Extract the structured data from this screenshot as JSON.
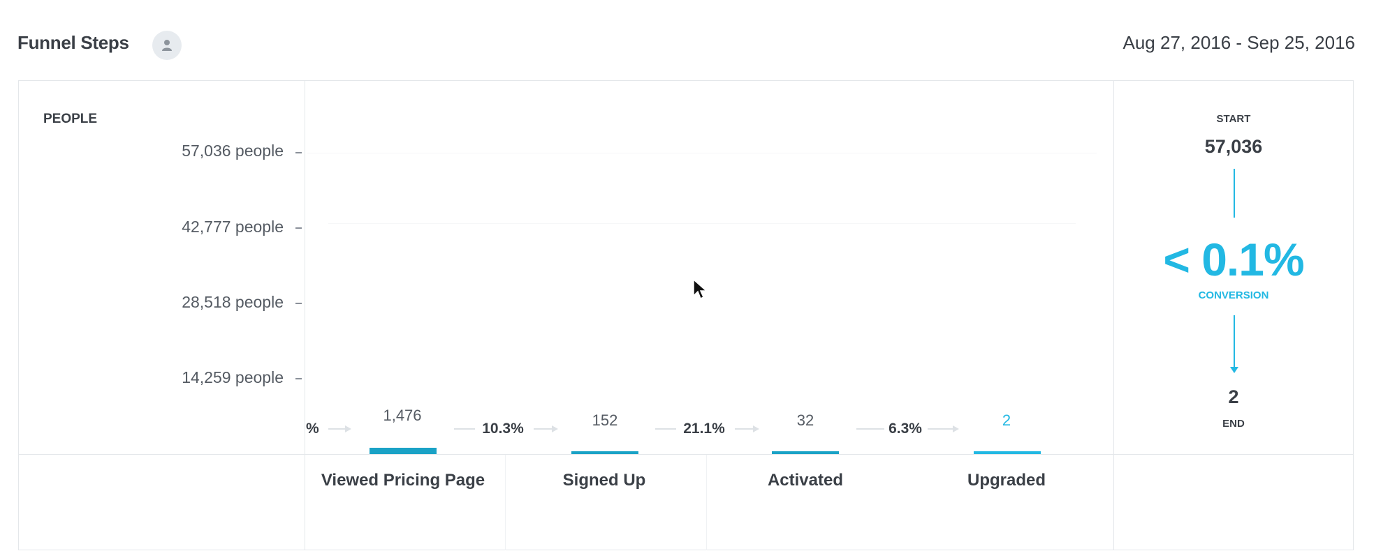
{
  "header": {
    "title": "Funnel Steps",
    "user_icon": "user-icon",
    "date_range": "Aug 27, 2016 - Sep 25, 2016"
  },
  "yaxis": {
    "title": "PEOPLE",
    "ticks": [
      "57,036 people",
      "42,777 people",
      "28,518 people",
      "14,259 people"
    ]
  },
  "steps": [
    {
      "label": "Viewed Pricing Page",
      "count": "1,476"
    },
    {
      "label": "Signed Up",
      "count": "152"
    },
    {
      "label": "Activated",
      "count": "32"
    },
    {
      "label": "Upgraded",
      "count": "2"
    }
  ],
  "conversions": {
    "leading": "%",
    "between": [
      "10.3%",
      "21.1%",
      "6.3%"
    ]
  },
  "summary": {
    "start_label": "START",
    "start_value": "57,036",
    "conversion_value": "< 0.1%",
    "conversion_label": "CONVERSION",
    "end_value": "2",
    "end_label": "END"
  },
  "colors": {
    "accent": "#22b8e3",
    "bar": "#1aa2c6",
    "text": "#3a3f46"
  }
}
